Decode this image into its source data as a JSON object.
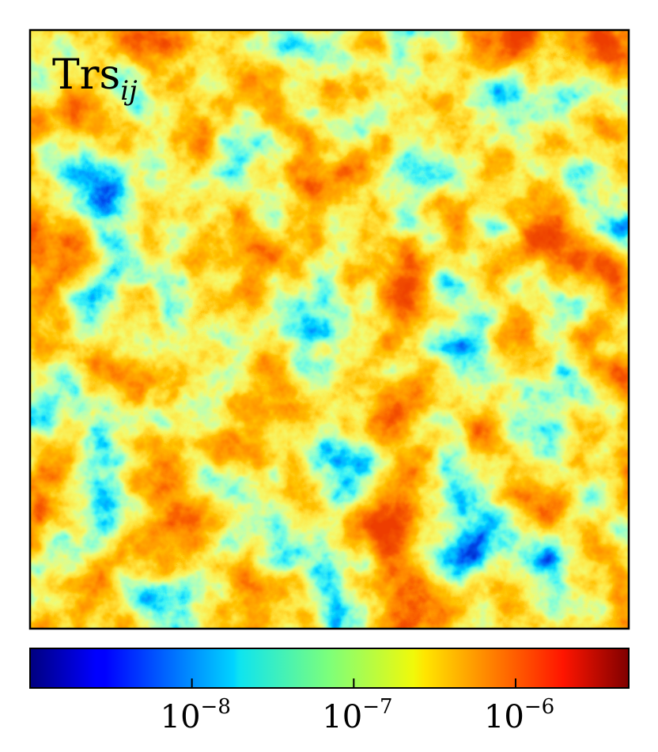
{
  "chart_data": {
    "type": "heatmap",
    "title": "",
    "panel_label": {
      "main": "Trs",
      "subscript": "ij"
    },
    "field_description_color_scale": "log",
    "colormap": "jet",
    "colorbar": {
      "orientation": "horizontal",
      "position": "bottom",
      "scale": "log",
      "range": [
        1e-09,
        5e-06
      ],
      "ticks": [
        {
          "value": 1e-08,
          "base": "10",
          "exponent": "−8"
        },
        {
          "value": 1e-07,
          "base": "10",
          "exponent": "−7"
        },
        {
          "value": 1e-06,
          "base": "10",
          "exponent": "−6"
        }
      ]
    },
    "axes_visible": false,
    "grid": false
  }
}
